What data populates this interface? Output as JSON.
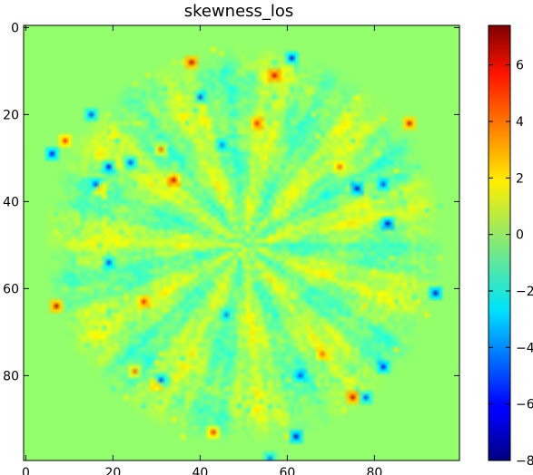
{
  "chart_data": {
    "type": "heatmap",
    "title": "skewness_los",
    "xlabel": "",
    "ylabel": "",
    "xlim": [
      -0.5,
      99.5
    ],
    "ylim": [
      99.5,
      -0.5
    ],
    "y_inverted": true,
    "xticks": [
      0,
      20,
      40,
      60,
      80
    ],
    "yticks": [
      0,
      20,
      40,
      60,
      80
    ],
    "colormap": "jet",
    "clim": [
      -8,
      7.4
    ],
    "background_value": 0,
    "pattern": "radial starburst of streaks centered near (50, 50), disk radius about 45",
    "colorbar_ticks": [
      -8,
      -6,
      -4,
      -2,
      0,
      2,
      4,
      6
    ],
    "colorbar_tick_labels": [
      "−8",
      "−6",
      "−4",
      "−2",
      "0",
      "2",
      "4",
      "6"
    ],
    "extreme_points": [
      {
        "x": 38,
        "y": 8,
        "value": 6.5
      },
      {
        "x": 57,
        "y": 11,
        "value": 6
      },
      {
        "x": 61,
        "y": 7,
        "value": -6
      },
      {
        "x": 15,
        "y": 20,
        "value": -5
      },
      {
        "x": 6,
        "y": 29,
        "value": -6.5
      },
      {
        "x": 9,
        "y": 26,
        "value": 5
      },
      {
        "x": 19,
        "y": 32,
        "value": -6
      },
      {
        "x": 17,
        "y": 37,
        "value": 6
      },
      {
        "x": 16,
        "y": 36,
        "value": -5
      },
      {
        "x": 31,
        "y": 28,
        "value": 4
      },
      {
        "x": 34,
        "y": 35,
        "value": 6
      },
      {
        "x": 88,
        "y": 22,
        "value": 6
      },
      {
        "x": 76,
        "y": 37,
        "value": -7
      },
      {
        "x": 82,
        "y": 36,
        "value": -5
      },
      {
        "x": 83,
        "y": 45,
        "value": -7
      },
      {
        "x": 94,
        "y": 61,
        "value": -7
      },
      {
        "x": 7,
        "y": 64,
        "value": 6.5
      },
      {
        "x": 27,
        "y": 63,
        "value": 5
      },
      {
        "x": 19,
        "y": 54,
        "value": -5
      },
      {
        "x": 30,
        "y": 82,
        "value": 6
      },
      {
        "x": 31,
        "y": 81,
        "value": -5
      },
      {
        "x": 43,
        "y": 93,
        "value": 5
      },
      {
        "x": 62,
        "y": 94,
        "value": -7
      },
      {
        "x": 63,
        "y": 80,
        "value": -5
      },
      {
        "x": 75,
        "y": 85,
        "value": 6
      },
      {
        "x": 78,
        "y": 85,
        "value": -5
      },
      {
        "x": 82,
        "y": 78,
        "value": -6
      },
      {
        "x": 56,
        "y": 99,
        "value": -4
      },
      {
        "x": 40,
        "y": 16,
        "value": -5
      },
      {
        "x": 53,
        "y": 22,
        "value": 5
      },
      {
        "x": 24,
        "y": 31,
        "value": -5
      },
      {
        "x": 72,
        "y": 32,
        "value": 4
      },
      {
        "x": 25,
        "y": 79,
        "value": 4
      },
      {
        "x": 46,
        "y": 66,
        "value": -4
      },
      {
        "x": 68,
        "y": 75,
        "value": 4
      },
      {
        "x": 45,
        "y": 27,
        "value": -4
      }
    ]
  }
}
